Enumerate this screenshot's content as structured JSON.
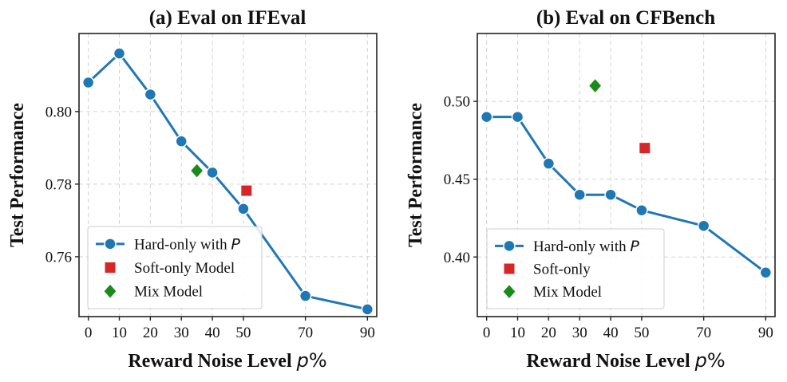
{
  "chart_data": [
    {
      "type": "line",
      "title": "(a) Eval on IFEval",
      "xlabel": "Reward Noise Level",
      "xlabel_var": "p",
      "xlabel_suffix": "%",
      "ylabel": "Test Performance",
      "xlim": [
        -3,
        93
      ],
      "ylim": [
        0.7435,
        0.8215
      ],
      "xticks": [
        0,
        10,
        20,
        30,
        40,
        50,
        70,
        90
      ],
      "yticks": [
        0.76,
        0.78,
        0.8
      ],
      "ytick_labels": [
        "0.76",
        "0.78",
        "0.80"
      ],
      "grid": true,
      "legend_position": "lower-left",
      "series": [
        {
          "name": "Hard-only with",
          "name_var": "P",
          "marker": "circle",
          "color": "#1f77b4",
          "x": [
            0,
            10,
            20,
            30,
            40,
            50,
            70,
            90
          ],
          "values": [
            0.808,
            0.816,
            0.8047,
            0.7918,
            0.7832,
            0.7732,
            0.7492,
            0.7455
          ]
        },
        {
          "name": "Soft-only Model",
          "marker": "square",
          "color": "#d62728",
          "x": [
            51
          ],
          "values": [
            0.7782
          ]
        },
        {
          "name": "Mix Model",
          "marker": "diamond",
          "color": "#1a8a1a",
          "x": [
            35
          ],
          "values": [
            0.7837
          ]
        }
      ]
    },
    {
      "type": "line",
      "title": "(b) Eval on CFBench",
      "xlabel": "Reward Noise Level",
      "xlabel_var": "p",
      "xlabel_suffix": "%",
      "ylabel": "Test Performance",
      "xlim": [
        -3,
        93
      ],
      "ylim": [
        0.3617,
        0.5436
      ],
      "xticks": [
        0,
        10,
        20,
        30,
        40,
        50,
        70,
        90
      ],
      "yticks": [
        0.4,
        0.45,
        0.5
      ],
      "ytick_labels": [
        "0.40",
        "0.45",
        "0.50"
      ],
      "grid": true,
      "legend_position": "lower-left",
      "series": [
        {
          "name": "Hard-only with",
          "name_var": "P",
          "marker": "circle",
          "color": "#1f77b4",
          "x": [
            0,
            10,
            20,
            30,
            40,
            50,
            70,
            90
          ],
          "values": [
            0.49,
            0.49,
            0.46,
            0.44,
            0.44,
            0.43,
            0.42,
            0.39
          ]
        },
        {
          "name": "Soft-only",
          "marker": "square",
          "color": "#d62728",
          "x": [
            51
          ],
          "values": [
            0.47
          ]
        },
        {
          "name": "Mix Model",
          "marker": "diamond",
          "color": "#1a8a1a",
          "x": [
            35
          ],
          "values": [
            0.51
          ]
        }
      ]
    }
  ]
}
